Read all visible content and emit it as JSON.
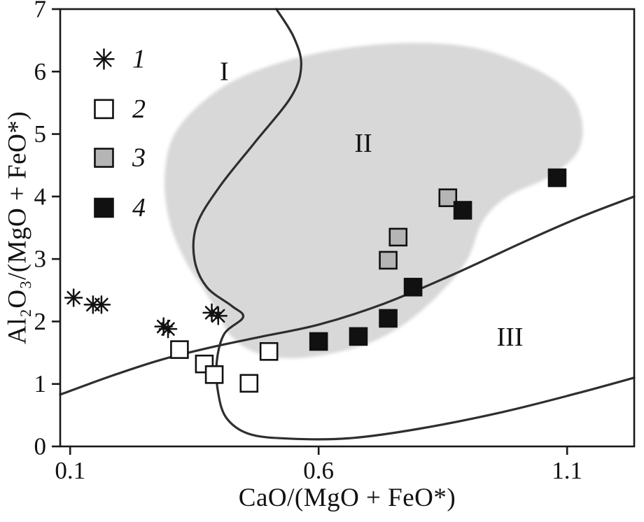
{
  "style": {
    "background": "#ffffff",
    "frame": "#1a1a1a",
    "line": "#2e2e2e",
    "shade": "#d8d8d8",
    "text": "#111111",
    "marker_black": "#111111",
    "marker_gray": "#b5b5b5",
    "marker_open": "#ffffff"
  },
  "chart_data": {
    "type": "scatter",
    "title": "",
    "xlabel": "CaO/(MgO + FeO*)",
    "ylabel": "Al₂O₃/(MgO + FeO*)",
    "xlim": [
      0.08,
      1.235
    ],
    "ylim": [
      0,
      7
    ],
    "x_ticks": [
      0.1,
      0.6,
      1.1
    ],
    "y_ticks": [
      0,
      1,
      2,
      3,
      4,
      5,
      6,
      7
    ],
    "grid": false,
    "legend": {
      "position": "top-left",
      "symbol_x": 0.168,
      "label_x": 0.225,
      "rows_y": [
        6.2,
        5.4,
        4.62,
        3.82
      ],
      "items": [
        {
          "label": "1",
          "marker": "asterisk"
        },
        {
          "label": "2",
          "marker": "open-square"
        },
        {
          "label": "3",
          "marker": "gray-square"
        },
        {
          "label": "4",
          "marker": "black-square"
        }
      ]
    },
    "regions": [
      {
        "label": "I",
        "x": 0.41,
        "y": 6.0
      },
      {
        "label": "II",
        "x": 0.69,
        "y": 4.85
      },
      {
        "label": "III",
        "x": 0.985,
        "y": 1.75
      }
    ],
    "series": [
      {
        "name": "1",
        "marker": "asterisk",
        "points": [
          [
            0.107,
            2.38
          ],
          [
            0.146,
            2.27
          ],
          [
            0.163,
            2.27
          ],
          [
            0.288,
            1.92
          ],
          [
            0.297,
            1.88
          ],
          [
            0.385,
            2.14
          ],
          [
            0.398,
            2.09
          ]
        ]
      },
      {
        "name": "2",
        "marker": "open-square",
        "points": [
          [
            0.32,
            1.55
          ],
          [
            0.37,
            1.32
          ],
          [
            0.39,
            1.15
          ],
          [
            0.46,
            1.01
          ],
          [
            0.5,
            1.52
          ]
        ]
      },
      {
        "name": "3",
        "marker": "gray-square",
        "points": [
          [
            0.74,
            2.98
          ],
          [
            0.76,
            3.35
          ],
          [
            0.86,
            3.98
          ]
        ]
      },
      {
        "name": "4",
        "marker": "black-square",
        "points": [
          [
            0.6,
            1.68
          ],
          [
            0.68,
            1.76
          ],
          [
            0.74,
            2.05
          ],
          [
            0.79,
            2.55
          ],
          [
            0.89,
            3.78
          ],
          [
            1.08,
            4.3
          ]
        ]
      }
    ],
    "shaded_field": {
      "name": "field-II-envelope",
      "color": "#d8d8d8",
      "points": [
        [
          0.29,
          4.3
        ],
        [
          0.31,
          5.0
        ],
        [
          0.38,
          5.6
        ],
        [
          0.47,
          6.0
        ],
        [
          0.6,
          6.3
        ],
        [
          0.75,
          6.45
        ],
        [
          0.9,
          6.4
        ],
        [
          1.02,
          6.1
        ],
        [
          1.1,
          5.7
        ],
        [
          1.13,
          5.2
        ],
        [
          1.12,
          4.7
        ],
        [
          1.06,
          4.3
        ],
        [
          0.98,
          4.0
        ],
        [
          0.93,
          3.6
        ],
        [
          0.9,
          3.0
        ],
        [
          0.85,
          2.5
        ],
        [
          0.78,
          2.0
        ],
        [
          0.7,
          1.65
        ],
        [
          0.6,
          1.45
        ],
        [
          0.52,
          1.42
        ],
        [
          0.46,
          1.55
        ],
        [
          0.42,
          1.8
        ],
        [
          0.4,
          2.1
        ],
        [
          0.37,
          2.5
        ],
        [
          0.33,
          3.0
        ],
        [
          0.3,
          3.6
        ]
      ]
    },
    "boundaries": [
      {
        "name": "field-I-II-and-bottom-boundary",
        "points": [
          [
            0.515,
            7.0
          ],
          [
            0.55,
            6.55
          ],
          [
            0.565,
            6.1
          ],
          [
            0.545,
            5.6
          ],
          [
            0.47,
            4.85
          ],
          [
            0.4,
            4.15
          ],
          [
            0.355,
            3.55
          ],
          [
            0.35,
            3.0
          ],
          [
            0.375,
            2.55
          ],
          [
            0.425,
            2.25
          ],
          [
            0.448,
            2.07
          ],
          [
            0.41,
            1.8
          ],
          [
            0.395,
            1.35
          ],
          [
            0.398,
            0.85
          ],
          [
            0.415,
            0.45
          ],
          [
            0.46,
            0.2
          ],
          [
            0.54,
            0.125
          ],
          [
            0.66,
            0.13
          ],
          [
            0.8,
            0.28
          ],
          [
            0.97,
            0.55
          ],
          [
            1.12,
            0.85
          ],
          [
            1.235,
            1.1
          ]
        ]
      },
      {
        "name": "field-III-upper-boundary",
        "points": [
          [
            0.08,
            0.83
          ],
          [
            0.18,
            1.12
          ],
          [
            0.28,
            1.38
          ],
          [
            0.38,
            1.58
          ],
          [
            0.48,
            1.75
          ],
          [
            0.6,
            1.95
          ],
          [
            0.73,
            2.28
          ],
          [
            0.87,
            2.75
          ],
          [
            1.02,
            3.3
          ],
          [
            1.13,
            3.68
          ],
          [
            1.235,
            4.0
          ]
        ]
      }
    ]
  }
}
